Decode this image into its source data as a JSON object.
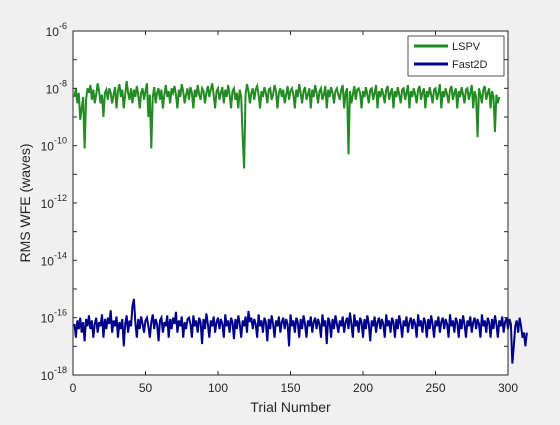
{
  "chart_data": {
    "type": "line",
    "title": "",
    "xlabel": "Trial Number",
    "ylabel": "RMS WFE (waves)",
    "xlim": [
      0,
      300
    ],
    "ylim": [
      1e-18,
      1e-06
    ],
    "yscale": "log",
    "grid": false,
    "box": true,
    "legend_position": "top-right",
    "xticks": [
      0,
      50,
      100,
      150,
      200,
      250,
      300
    ],
    "xtick_labels": [
      "0",
      "50",
      "100",
      "150",
      "200",
      "250",
      "300"
    ],
    "yticks": [
      1e-18,
      1e-16,
      1e-14,
      1e-12,
      1e-10,
      1e-08,
      1e-06
    ],
    "ytick_labels": [
      {
        "base": "10",
        "exp": "-18"
      },
      {
        "base": "10",
        "exp": "-16"
      },
      {
        "base": "10",
        "exp": "-14"
      },
      {
        "base": "10",
        "exp": "-12"
      },
      {
        "base": "10",
        "exp": "-10"
      },
      {
        "base": "10",
        "exp": "-8"
      },
      {
        "base": "10",
        "exp": "-6"
      }
    ],
    "series": [
      {
        "name": "LSPV",
        "color": "#228b22",
        "x_start": 1,
        "x_step": 1,
        "values": [
          5e-09,
          1e-08,
          3e-09,
          7e-09,
          8e-10,
          2e-09,
          5e-09,
          8e-11,
          4e-09,
          1e-08,
          7e-09,
          1.3e-08,
          4e-09,
          9e-09,
          3e-09,
          6e-09,
          1.5e-08,
          8e-09,
          3e-09,
          6e-09,
          1e-09,
          7e-09,
          9e-09,
          4e-09,
          1e-08,
          7e-09,
          3e-09,
          6e-09,
          1.1e-08,
          2e-09,
          8e-09,
          1.4e-08,
          5e-09,
          9e-09,
          2e-09,
          6e-09,
          1.8e-08,
          7e-09,
          4e-09,
          1e-08,
          3e-09,
          9e-09,
          5e-09,
          1.2e-08,
          6e-09,
          2e-09,
          7e-09,
          1e-08,
          4e-09,
          8e-09,
          1.5e-08,
          1e-09,
          6e-09,
          8e-11,
          5e-09,
          1.1e-08,
          3e-09,
          7e-09,
          1e-08,
          4e-09,
          9e-09,
          2e-09,
          6e-09,
          1.3e-08,
          5e-09,
          8e-09,
          3e-09,
          1e-08,
          7e-09,
          1.2e-08,
          6e-09,
          2e-09,
          9e-09,
          5e-09,
          1.4e-08,
          8e-09,
          3e-09,
          6e-09,
          1e-08,
          4e-09,
          1.1e-08,
          7e-09,
          2e-09,
          9e-09,
          5e-09,
          1.3e-08,
          6e-09,
          4e-09,
          1e-08,
          8e-09,
          3e-09,
          7e-09,
          1.2e-08,
          5e-09,
          9e-09,
          1.5e-08,
          6e-09,
          2e-09,
          8e-09,
          1e-08,
          4e-09,
          7e-09,
          1.1e-08,
          3e-09,
          9e-09,
          5e-09,
          1.3e-08,
          6e-09,
          2e-09,
          8e-09,
          1e-08,
          4e-09,
          7e-09,
          2e-09,
          9e-09,
          5e-09,
          2e-10,
          1.6e-11,
          6e-09,
          1.4e-08,
          8e-09,
          3e-09,
          7e-09,
          1e-08,
          4e-09,
          9e-09,
          1.2e-08,
          6e-09,
          2e-09,
          8e-09,
          5e-09,
          1.1e-08,
          7e-09,
          3e-09,
          9e-09,
          1e-08,
          4e-09,
          6e-09,
          1.3e-08,
          8e-09,
          2e-09,
          7e-09,
          1e-08,
          5e-09,
          9e-09,
          3e-09,
          6e-09,
          1.2e-08,
          4e-09,
          8e-09,
          1e-08,
          6e-09,
          2e-09,
          9e-09,
          5e-09,
          1.4e-08,
          7e-09,
          3e-09,
          8e-09,
          1.1e-08,
          4e-09,
          6e-09,
          1e-08,
          2e-09,
          9e-09,
          5e-09,
          1.3e-08,
          7e-09,
          3e-09,
          8e-09,
          1e-08,
          4e-09,
          6e-09,
          1.2e-08,
          2e-09,
          9e-09,
          5e-09,
          1.1e-08,
          7e-09,
          3e-09,
          8e-09,
          1e-08,
          6e-09,
          4e-09,
          9e-09,
          1.3e-08,
          2e-09,
          7e-09,
          1e-08,
          5e-11,
          8e-09,
          3e-09,
          6e-09,
          1.2e-08,
          4e-09,
          9e-09,
          1e-08,
          7e-09,
          2e-09,
          8e-09,
          5e-09,
          1.1e-08,
          6e-09,
          3e-09,
          9e-09,
          1e-08,
          4e-09,
          7e-09,
          1.3e-08,
          2e-09,
          8e-09,
          5e-09,
          1e-08,
          6e-09,
          3e-09,
          9e-09,
          1.2e-08,
          4e-09,
          7e-09,
          1e-08,
          2e-09,
          8e-09,
          5e-09,
          1.1e-08,
          6e-09,
          3e-09,
          9e-09,
          1e-08,
          4e-09,
          7e-09,
          1.3e-08,
          2e-09,
          8e-09,
          5e-09,
          1e-08,
          6e-09,
          3e-09,
          9e-09,
          1.2e-08,
          4e-09,
          7e-09,
          1e-08,
          2e-09,
          8e-09,
          5e-09,
          1.1e-08,
          6e-09,
          3e-09,
          9e-09,
          1e-08,
          4e-09,
          7e-09,
          1.4e-08,
          2e-09,
          8e-09,
          5e-09,
          1e-08,
          6e-09,
          3e-09,
          9e-09,
          1.2e-08,
          4e-09,
          7e-09,
          1e-08,
          2e-09,
          8e-09,
          5e-09,
          1.1e-08,
          6e-09,
          3e-09,
          9e-09,
          1e-08,
          4e-09,
          7e-09,
          1.3e-08,
          2e-09,
          8e-09,
          5e-09,
          2e-10,
          1e-08,
          6e-09,
          3e-09,
          9e-09,
          1.2e-08,
          4e-09,
          7e-09,
          1e-08,
          2e-09,
          8e-09,
          5e-09,
          3e-10,
          6e-09,
          3e-09,
          5e-09
        ]
      },
      {
        "name": "Fast2D",
        "color": "#00008b",
        "x_start": 1,
        "x_step": 1,
        "values": [
          6e-17,
          2e-17,
          8e-17,
          4e-17,
          1e-16,
          3e-17,
          7e-17,
          1.5e-17,
          9e-17,
          5e-17,
          1.2e-16,
          4e-17,
          8e-17,
          2e-17,
          6e-17,
          1e-16,
          3e-17,
          7e-17,
          5e-17,
          1.3e-16,
          2e-17,
          9e-17,
          4e-17,
          1e-16,
          6e-17,
          1.8e-16,
          3e-17,
          8e-17,
          5e-17,
          1.1e-16,
          2e-17,
          7e-17,
          4e-17,
          9e-17,
          1e-17,
          6e-17,
          1.2e-16,
          3e-17,
          8e-17,
          5e-17,
          2.5e-16,
          4.5e-16,
          7e-17,
          2e-17,
          9e-17,
          4e-17,
          1.1e-16,
          6e-17,
          3e-17,
          8e-17,
          1e-16,
          5e-17,
          2e-17,
          7e-17,
          1.3e-16,
          4e-17,
          9e-17,
          6e-17,
          1.5e-17,
          8e-17,
          1e-16,
          3e-17,
          7e-17,
          5e-17,
          1.2e-16,
          2e-17,
          9e-17,
          4e-17,
          1e-16,
          6e-17,
          1.6e-16,
          3e-17,
          8e-17,
          5e-17,
          1.1e-16,
          2e-17,
          7e-17,
          4e-17,
          9e-17,
          1e-16,
          6e-17,
          2e-17,
          1.2e-16,
          5e-17,
          8e-17,
          3e-17,
          1e-16,
          7e-17,
          1.2e-17,
          9e-17,
          4e-17,
          1.4e-16,
          6e-17,
          2e-17,
          8e-17,
          5e-17,
          1.1e-16,
          3e-17,
          7e-17,
          1e-16,
          4e-17,
          9e-17,
          6e-17,
          2e-17,
          1.3e-16,
          5e-17,
          8e-17,
          3e-17,
          1e-16,
          7e-17,
          1.8e-17,
          9e-17,
          4e-17,
          1.2e-16,
          6e-17,
          2e-17,
          8e-17,
          5e-17,
          1.1e-16,
          3e-17,
          1.7e-16,
          7e-17,
          1e-16,
          4e-17,
          9e-17,
          6e-17,
          2e-17,
          1.3e-16,
          5e-17,
          8e-17,
          3e-17,
          1e-16,
          7e-17,
          1.5e-17,
          9e-17,
          4e-17,
          1.2e-16,
          6e-17,
          2e-17,
          8e-17,
          5e-17,
          1.1e-16,
          3e-17,
          7e-17,
          1e-16,
          4e-17,
          9e-17,
          6e-17,
          1e-17,
          1.3e-16,
          5e-17,
          8e-17,
          3e-17,
          1e-16,
          7e-17,
          2e-17,
          9e-17,
          4e-17,
          1.2e-16,
          6e-17,
          2e-17,
          8e-17,
          5e-17,
          1.1e-16,
          3e-17,
          7e-17,
          1e-16,
          4e-17,
          9e-17,
          6e-17,
          2e-17,
          1.3e-16,
          5e-17,
          8e-17,
          1.2e-17,
          1e-16,
          7e-17,
          2e-17,
          9e-17,
          4e-17,
          1.2e-16,
          6e-17,
          3e-17,
          8e-17,
          5e-17,
          1.1e-16,
          3e-17,
          7e-17,
          1e-16,
          4e-17,
          1.5e-16,
          6e-17,
          2e-17,
          1.3e-16,
          5e-17,
          8e-17,
          3e-17,
          1e-16,
          7e-17,
          2e-17,
          9e-17,
          4e-17,
          1.2e-16,
          6e-17,
          1.5e-17,
          8e-17,
          5e-17,
          1.1e-16,
          3e-17,
          7e-17,
          1e-16,
          4e-17,
          9e-17,
          6e-17,
          2e-17,
          1.3e-16,
          5e-17,
          8e-17,
          3e-17,
          1e-16,
          7e-17,
          2e-17,
          9e-17,
          4e-17,
          1.2e-16,
          6e-17,
          2e-17,
          8e-17,
          5e-17,
          1.1e-16,
          3e-17,
          7e-17,
          1e-16,
          4e-17,
          9e-17,
          6e-17,
          2e-17,
          1.3e-16,
          5e-17,
          8e-17,
          3e-17,
          1e-16,
          7e-17,
          2e-17,
          9e-17,
          4e-17,
          1.2e-16,
          6e-17,
          2e-17,
          8e-17,
          5e-17,
          1.1e-16,
          3e-17,
          7e-17,
          1e-16,
          4e-17,
          9e-17,
          6e-17,
          2e-17,
          1.3e-16,
          5e-17,
          8e-17,
          3e-17,
          1e-16,
          7e-17,
          2e-17,
          9e-17,
          4e-17,
          1.2e-16,
          6e-17,
          2e-17,
          8e-17,
          5e-17,
          1.1e-16,
          3e-17,
          7e-17,
          1e-16,
          4e-17,
          9e-17,
          6e-17,
          2e-17,
          1.3e-16,
          5e-17,
          8e-17,
          3e-17,
          1e-16,
          7e-17,
          2e-17,
          9e-17,
          4e-17,
          1.2e-16,
          6e-17,
          2e-17,
          8e-17,
          5e-17,
          1.1e-16,
          3e-17,
          7e-17,
          1e-16,
          4e-17,
          9e-17,
          6e-17,
          2.5e-18,
          1e-17,
          5e-17,
          8e-17,
          3e-17,
          1e-16,
          5e-17,
          2e-17,
          3e-17,
          1e-17,
          3e-17
        ]
      }
    ]
  }
}
